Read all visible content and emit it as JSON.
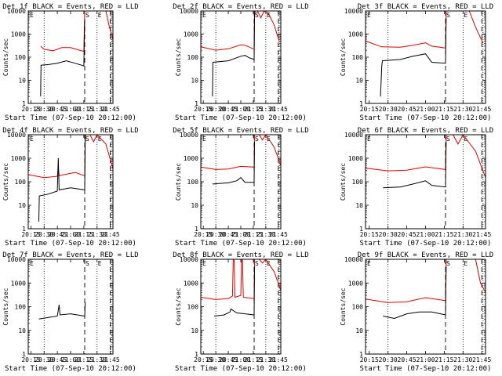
{
  "figure": {
    "ylabel": "Counts/sec",
    "xlabel": "Start Time (07-Sep-10 20:12:00)",
    "x_ticks": [
      "20:15",
      "20:30",
      "20:45",
      "21:00",
      "21:15",
      "21:30",
      "21:45"
    ],
    "y_ticks": [
      "1",
      "10",
      "100",
      "1000",
      "10000"
    ],
    "marker_labels": {
      "s": "S",
      "e": "E"
    },
    "colors": {
      "events": "#000000",
      "lld": "#e00000"
    }
  },
  "chart_data": [
    {
      "type": "line",
      "title": "Det 1f BLACK = Events, RED = LLD",
      "x_range": [
        "20:12",
        "21:48"
      ],
      "ylim": [
        1,
        10000
      ],
      "y_scale": "log",
      "markers": {
        "dotted": [
          "20:30",
          "21:30",
          "21:46"
        ],
        "dashed": [
          "21:16",
          "21:45"
        ]
      },
      "series": [
        {
          "name": "Events",
          "color": "#000000",
          "points": [
            [
              "20:26",
              2
            ],
            [
              "20:26.5",
              45
            ],
            [
              "20:35",
              48
            ],
            [
              "20:45",
              55
            ],
            [
              "20:55",
              70
            ],
            [
              "21:05",
              55
            ],
            [
              "21:15",
              42
            ],
            [
              "21:15.5",
              500
            ],
            [
              "21:16",
              4000
            ]
          ]
        },
        {
          "name": "LLD",
          "color": "#e00000",
          "points": [
            [
              "20:26",
              300
            ],
            [
              "20:30",
              220
            ],
            [
              "20:40",
              190
            ],
            [
              "20:50",
              260
            ],
            [
              "21:00",
              260
            ],
            [
              "21:10",
              200
            ],
            [
              "21:15",
              180
            ],
            [
              "21:16",
              15000
            ],
            [
              "21:40",
              15000
            ],
            [
              "21:44",
              2000
            ],
            [
              "21:48",
              600
            ]
          ]
        }
      ]
    },
    {
      "type": "line",
      "title": "Det 2f BLACK = Events, RED = LLD",
      "x_range": [
        "20:12",
        "21:48"
      ],
      "ylim": [
        1,
        10000
      ],
      "y_scale": "log",
      "markers": {
        "dotted": [
          "20:30",
          "21:30",
          "21:46"
        ],
        "dashed": [
          "21:16",
          "21:45"
        ]
      },
      "series": [
        {
          "name": "Events",
          "color": "#000000",
          "points": [
            [
              "20:26",
              2
            ],
            [
              "20:26.5",
              60
            ],
            [
              "20:45",
              70
            ],
            [
              "21:00",
              110
            ],
            [
              "21:05",
              120
            ],
            [
              "21:10",
              95
            ],
            [
              "21:16",
              80
            ],
            [
              "21:16.5",
              5000
            ],
            [
              "21:17",
              12000
            ]
          ]
        },
        {
          "name": "LLD",
          "color": "#e00000",
          "points": [
            [
              "20:12",
              280
            ],
            [
              "20:30",
              200
            ],
            [
              "20:45",
              230
            ],
            [
              "21:00",
              340
            ],
            [
              "21:05",
              330
            ],
            [
              "21:16",
              220
            ],
            [
              "21:16.5",
              10000
            ],
            [
              "21:20",
              14000
            ],
            [
              "21:24",
              5000
            ],
            [
              "21:28",
              12000
            ],
            [
              "21:33",
              8000
            ],
            [
              "21:40",
              2500
            ],
            [
              "21:46",
              500
            ]
          ]
        }
      ]
    },
    {
      "type": "line",
      "title": "Det 3f BLACK = Events, RED = LLD",
      "x_range": [
        "20:12",
        "21:48"
      ],
      "ylim": [
        1,
        10000
      ],
      "y_scale": "log",
      "markers": {
        "dotted": [
          "20:30",
          "21:30",
          "21:46"
        ],
        "dashed": [
          "21:16",
          "21:45"
        ]
      },
      "series": [
        {
          "name": "Events",
          "color": "#000000",
          "points": [
            [
              "20:24",
              2
            ],
            [
              "20:25",
              40
            ],
            [
              "20:25.5",
              70
            ],
            [
              "20:40",
              80
            ],
            [
              "20:50",
              110
            ],
            [
              "21:00",
              140
            ],
            [
              "21:05",
              60
            ],
            [
              "21:16",
              55
            ],
            [
              "21:16.5",
              5000
            ]
          ]
        },
        {
          "name": "LLD",
          "color": "#e00000",
          "points": [
            [
              "20:12",
              500
            ],
            [
              "20:25",
              280
            ],
            [
              "20:40",
              270
            ],
            [
              "20:50",
              330
            ],
            [
              "21:00",
              420
            ],
            [
              "21:05",
              300
            ],
            [
              "21:16",
              250
            ],
            [
              "21:16.5",
              12000
            ],
            [
              "21:35",
              15000
            ],
            [
              "21:40",
              2000
            ],
            [
              "21:46",
              400
            ]
          ]
        }
      ]
    },
    {
      "type": "line",
      "title": "Det 4f BLACK = Events, RED = LLD",
      "x_range": [
        "20:12",
        "21:48"
      ],
      "ylim": [
        1,
        10000
      ],
      "y_scale": "log",
      "markers": {
        "dotted": [
          "20:30",
          "21:30",
          "21:46"
        ],
        "dashed": [
          "21:16",
          "21:45"
        ]
      },
      "series": [
        {
          "name": "Events",
          "color": "#000000",
          "points": [
            [
              "20:24",
              2
            ],
            [
              "20:24.5",
              25
            ],
            [
              "20:35",
              30
            ],
            [
              "20:45",
              40
            ],
            [
              "20:46",
              1000
            ],
            [
              "20:47",
              45
            ],
            [
              "21:00",
              55
            ],
            [
              "21:16",
              45
            ],
            [
              "21:16.5",
              5000
            ],
            [
              "21:17",
              14000
            ]
          ]
        },
        {
          "name": "LLD",
          "color": "#e00000",
          "points": [
            [
              "20:12",
              200
            ],
            [
              "20:30",
              150
            ],
            [
              "20:45",
              170
            ],
            [
              "20:46",
              400
            ],
            [
              "20:47",
              180
            ],
            [
              "21:05",
              250
            ],
            [
              "21:16",
              180
            ],
            [
              "21:16.5",
              13000
            ],
            [
              "21:22",
              10000
            ],
            [
              "21:26",
              5000
            ],
            [
              "21:30",
              10000
            ],
            [
              "21:40",
              4000
            ],
            [
              "21:48",
              350
            ]
          ]
        }
      ]
    },
    {
      "type": "line",
      "title": "Det 5f BLACK = Events, RED = LLD",
      "x_range": [
        "20:12",
        "21:48"
      ],
      "ylim": [
        1,
        10000
      ],
      "y_scale": "log",
      "markers": {
        "dotted": [
          "20:30",
          "21:30",
          "21:46"
        ],
        "dashed": [
          "21:16",
          "21:45"
        ]
      },
      "series": [
        {
          "name": "Events",
          "color": "#000000",
          "points": [
            [
              "20:26",
              80
            ],
            [
              "20:45",
              90
            ],
            [
              "20:55",
              110
            ],
            [
              "21:00",
              150
            ],
            [
              "21:05",
              95
            ],
            [
              "21:16",
              95
            ],
            [
              "21:16.5",
              5000
            ]
          ]
        },
        {
          "name": "LLD",
          "color": "#e00000",
          "points": [
            [
              "20:12",
              420
            ],
            [
              "20:30",
              330
            ],
            [
              "20:45",
              350
            ],
            [
              "21:00",
              450
            ],
            [
              "21:16",
              420
            ],
            [
              "21:16.5",
              13000
            ],
            [
              "21:22",
              14000
            ],
            [
              "21:26",
              6000
            ],
            [
              "21:30",
              12000
            ],
            [
              "21:40",
              3000
            ],
            [
              "21:48",
              500
            ]
          ]
        }
      ]
    },
    {
      "type": "line",
      "title": "Det 6f BLACK = Events, RED = LLD",
      "x_range": [
        "20:12",
        "21:48"
      ],
      "ylim": [
        1,
        10000
      ],
      "y_scale": "log",
      "markers": {
        "dotted": [
          "20:30",
          "21:30",
          "21:46"
        ],
        "dashed": [
          "21:16",
          "21:45"
        ]
      },
      "series": [
        {
          "name": "Events",
          "color": "#000000",
          "points": [
            [
              "20:26",
              55
            ],
            [
              "20:40",
              60
            ],
            [
              "20:50",
              80
            ],
            [
              "21:00",
              110
            ],
            [
              "21:05",
              70
            ],
            [
              "21:16",
              60
            ],
            [
              "21:16.5",
              5000
            ]
          ]
        },
        {
          "name": "LLD",
          "color": "#e00000",
          "points": [
            [
              "20:12",
              380
            ],
            [
              "20:30",
              290
            ],
            [
              "20:45",
              310
            ],
            [
              "21:00",
              430
            ],
            [
              "21:16",
              330
            ],
            [
              "21:16.5",
              12000
            ],
            [
              "21:22",
              10000
            ],
            [
              "21:26",
              4000
            ],
            [
              "21:30",
              12000
            ],
            [
              "21:40",
              2000
            ],
            [
              "21:48",
              150
            ]
          ]
        }
      ]
    },
    {
      "type": "line",
      "title": "Det 7f BLACK = Events, RED = LLD",
      "x_range": [
        "20:12",
        "21:48"
      ],
      "ylim": [
        1,
        10000
      ],
      "y_scale": "log",
      "markers": {
        "dotted": [
          "20:30",
          "21:30",
          "21:46"
        ],
        "dashed": [
          "21:16",
          "21:45"
        ]
      },
      "series": [
        {
          "name": "Events",
          "color": "#000000",
          "points": [
            [
              "20:24",
              30
            ],
            [
              "20:35",
              35
            ],
            [
              "20:45",
              40
            ],
            [
              "20:47",
              120
            ],
            [
              "20:48",
              45
            ],
            [
              "21:00",
              50
            ],
            [
              "21:16",
              40
            ],
            [
              "21:16.5",
              150
            ]
          ]
        },
        {
          "name": "LLD",
          "color": "#e00000",
          "points": []
        }
      ]
    },
    {
      "type": "line",
      "title": "Det 8f BLACK = Events, RED = LLD",
      "x_range": [
        "20:12",
        "21:48"
      ],
      "ylim": [
        1,
        10000
      ],
      "y_scale": "log",
      "markers": {
        "dotted": [
          "20:30",
          "21:30",
          "21:46"
        ],
        "dashed": [
          "21:16",
          "21:45"
        ]
      },
      "series": [
        {
          "name": "Events",
          "color": "#000000",
          "points": [
            [
              "20:28",
              40
            ],
            [
              "20:40",
              45
            ],
            [
              "20:47",
              60
            ],
            [
              "20:48",
              80
            ],
            [
              "20:55",
              55
            ],
            [
              "21:05",
              50
            ],
            [
              "21:16",
              45
            ],
            [
              "21:16.5",
              5000
            ]
          ]
        },
        {
          "name": "LLD",
          "color": "#e00000",
          "points": [
            [
              "20:12",
              250
            ],
            [
              "20:30",
              200
            ],
            [
              "20:45",
              220
            ],
            [
              "20:50",
              280
            ],
            [
              "20:51",
              12000
            ],
            [
              "20:52",
              12000
            ],
            [
              "20:53",
              250
            ],
            [
              "21:00",
              300
            ],
            [
              "21:01",
              12000
            ],
            [
              "21:02",
              12000
            ],
            [
              "21:03",
              250
            ],
            [
              "21:16",
              220
            ],
            [
              "21:16.5",
              12000
            ],
            [
              "21:22",
              15000
            ],
            [
              "21:26",
              7000
            ],
            [
              "21:30",
              14000
            ],
            [
              "21:40",
              3000
            ],
            [
              "21:48",
              500
            ]
          ]
        }
      ]
    },
    {
      "type": "line",
      "title": "Det 9f BLACK = Events, RED = LLD",
      "x_range": [
        "20:12",
        "21:48"
      ],
      "ylim": [
        1,
        10000
      ],
      "y_scale": "log",
      "markers": {
        "dotted": [
          "20:30",
          "21:30",
          "21:46"
        ],
        "dashed": [
          "21:16",
          "21:45"
        ]
      },
      "series": [
        {
          "name": "Events",
          "color": "#000000",
          "points": [
            [
              "20:26",
              40
            ],
            [
              "20:35",
              32
            ],
            [
              "20:45",
              50
            ],
            [
              "20:55",
              60
            ],
            [
              "21:05",
              60
            ],
            [
              "21:16",
              45
            ],
            [
              "21:16.5",
              5000
            ]
          ]
        },
        {
          "name": "LLD",
          "color": "#e00000",
          "points": [
            [
              "20:12",
              210
            ],
            [
              "20:30",
              150
            ],
            [
              "20:45",
              160
            ],
            [
              "21:00",
              240
            ],
            [
              "21:16",
              180
            ],
            [
              "21:16.5",
              10000
            ],
            [
              "21:40",
              15000
            ],
            [
              "21:44",
              1000
            ],
            [
              "21:48",
              400
            ]
          ]
        }
      ]
    }
  ]
}
